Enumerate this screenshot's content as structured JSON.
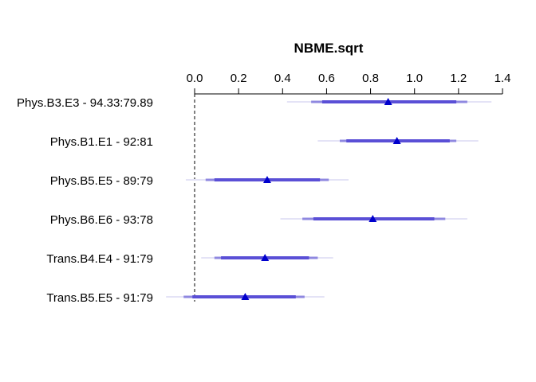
{
  "chart_data": {
    "type": "interval",
    "title": "NBME.sqrt",
    "xlim": [
      0,
      1.4
    ],
    "ticks": [
      "0.0",
      "0.2",
      "0.4",
      "0.6",
      "0.8",
      "1.0",
      "1.2",
      "1.4"
    ],
    "reference_line": 0,
    "rows": [
      {
        "label": "Phys.B3.E3 - 94.33:79.89",
        "estimate": 0.88,
        "outer": [
          0.42,
          1.35
        ],
        "mid": [
          0.53,
          1.24
        ],
        "inner": [
          0.58,
          1.19
        ]
      },
      {
        "label": "Phys.B1.E1 - 92:81",
        "estimate": 0.92,
        "outer": [
          0.56,
          1.29
        ],
        "mid": [
          0.66,
          1.19
        ],
        "inner": [
          0.69,
          1.16
        ]
      },
      {
        "label": "Phys.B5.E5 - 89:79",
        "estimate": 0.33,
        "outer": [
          -0.04,
          0.7
        ],
        "mid": [
          0.05,
          0.61
        ],
        "inner": [
          0.09,
          0.57
        ]
      },
      {
        "label": "Phys.B6.E6 - 93:78",
        "estimate": 0.81,
        "outer": [
          0.39,
          1.24
        ],
        "mid": [
          0.49,
          1.14
        ],
        "inner": [
          0.54,
          1.09
        ]
      },
      {
        "label": "Trans.B4.E4 - 91:79",
        "estimate": 0.32,
        "outer": [
          0.03,
          0.63
        ],
        "mid": [
          0.09,
          0.56
        ],
        "inner": [
          0.12,
          0.52
        ]
      },
      {
        "label": "Trans.B5.E5 - 91:79",
        "estimate": 0.23,
        "outer": [
          -0.13,
          0.59
        ],
        "mid": [
          -0.05,
          0.5
        ],
        "inner": [
          -0.01,
          0.46
        ]
      }
    ],
    "colors": {
      "point": "#0000cd",
      "inner": "#5a4fd6",
      "mid": "#8f88e0",
      "outer": "#e4e3f6",
      "axis": "#000000"
    }
  }
}
